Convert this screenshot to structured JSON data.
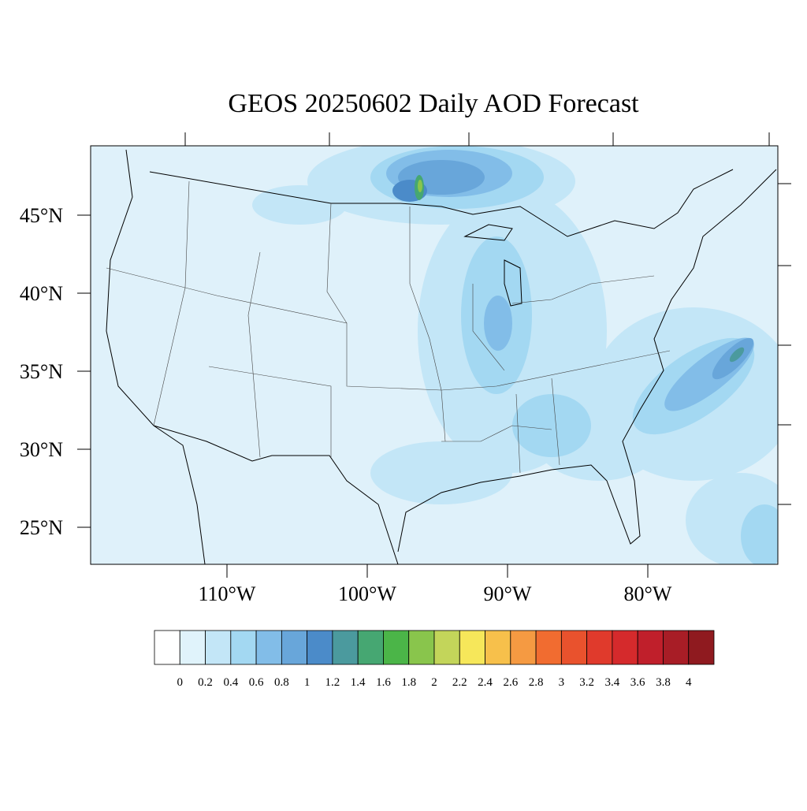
{
  "title": "GEOS 20250602 Daily AOD Forecast",
  "lat_labels": [
    "45°N",
    "40°N",
    "35°N",
    "30°N",
    "25°N"
  ],
  "lon_labels": [
    "110°W",
    "100°W",
    "90°W",
    "80°W"
  ],
  "colorbar": {
    "levels": [
      0,
      0.2,
      0.4,
      0.6,
      0.8,
      1,
      1.2,
      1.4,
      1.6,
      1.8,
      2,
      2.2,
      2.4,
      2.6,
      2.8,
      3,
      3.2,
      3.4,
      3.6,
      3.8,
      4
    ],
    "colors": [
      "#ffffff",
      "#e0f3fb",
      "#c3e6f7",
      "#a3d8f2",
      "#82bde8",
      "#68a6da",
      "#4b8bc9",
      "#4b9a9e",
      "#46a772",
      "#4bb548",
      "#89c54c",
      "#c3d55a",
      "#f6e75a",
      "#f7c04b",
      "#f59a42",
      "#f16c30",
      "#e9522d",
      "#e03a2c",
      "#d52a2c",
      "#c01f2b",
      "#a81d26",
      "#8f1a1f"
    ]
  }
}
